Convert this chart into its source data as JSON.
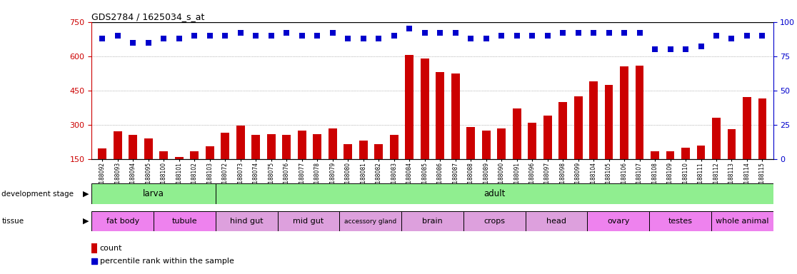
{
  "title": "GDS2784 / 1625034_s_at",
  "samples": [
    "GSM188092",
    "GSM188093",
    "GSM188094",
    "GSM188095",
    "GSM188100",
    "GSM188101",
    "GSM188102",
    "GSM188103",
    "GSM188072",
    "GSM188073",
    "GSM188074",
    "GSM188075",
    "GSM188076",
    "GSM188077",
    "GSM188078",
    "GSM188079",
    "GSM188080",
    "GSM188081",
    "GSM188082",
    "GSM188083",
    "GSM188084",
    "GSM188085",
    "GSM188086",
    "GSM188087",
    "GSM188088",
    "GSM188089",
    "GSM188090",
    "GSM188091",
    "GSM188096",
    "GSM188097",
    "GSM188098",
    "GSM188099",
    "GSM188104",
    "GSM188105",
    "GSM188106",
    "GSM188107",
    "GSM188108",
    "GSM188109",
    "GSM188110",
    "GSM188111",
    "GSM188112",
    "GSM188113",
    "GSM188114",
    "GSM188115"
  ],
  "count_values": [
    195,
    270,
    255,
    240,
    185,
    160,
    185,
    205,
    265,
    295,
    255,
    260,
    255,
    275,
    260,
    285,
    215,
    230,
    215,
    255,
    605,
    590,
    530,
    525,
    290,
    275,
    285,
    370,
    310,
    340,
    400,
    425,
    490,
    475,
    555,
    560,
    185,
    185,
    200,
    210,
    330,
    280,
    420,
    415
  ],
  "percentile_values": [
    88,
    90,
    85,
    85,
    88,
    88,
    90,
    90,
    90,
    92,
    90,
    90,
    92,
    90,
    90,
    92,
    88,
    88,
    88,
    90,
    95,
    92,
    92,
    92,
    88,
    88,
    90,
    90,
    90,
    90,
    92,
    92,
    92,
    92,
    92,
    92,
    80,
    80,
    80,
    82,
    90,
    88,
    90,
    90
  ],
  "ylim_left": [
    150,
    750
  ],
  "ylim_right": [
    0,
    100
  ],
  "yticks_left": [
    150,
    300,
    450,
    600,
    750
  ],
  "yticks_right": [
    0,
    25,
    50,
    75,
    100
  ],
  "grid_values": [
    300,
    450,
    600
  ],
  "dev_stage_groups": [
    {
      "label": "larva",
      "start": 0,
      "end": 8,
      "color": "#90EE90"
    },
    {
      "label": "adult",
      "start": 8,
      "end": 44,
      "color": "#90EE90"
    }
  ],
  "tissue_groups": [
    {
      "label": "fat body",
      "start": 0,
      "end": 4,
      "color": "#EE82EE"
    },
    {
      "label": "tubule",
      "start": 4,
      "end": 8,
      "color": "#EE82EE"
    },
    {
      "label": "hind gut",
      "start": 8,
      "end": 12,
      "color": "#DDA0DD"
    },
    {
      "label": "mid gut",
      "start": 12,
      "end": 16,
      "color": "#DDA0DD"
    },
    {
      "label": "accessory gland",
      "start": 16,
      "end": 20,
      "color": "#DDA0DD"
    },
    {
      "label": "brain",
      "start": 20,
      "end": 24,
      "color": "#DDA0DD"
    },
    {
      "label": "crops",
      "start": 24,
      "end": 28,
      "color": "#DDA0DD"
    },
    {
      "label": "head",
      "start": 28,
      "end": 32,
      "color": "#DDA0DD"
    },
    {
      "label": "ovary",
      "start": 32,
      "end": 36,
      "color": "#EE82EE"
    },
    {
      "label": "testes",
      "start": 36,
      "end": 40,
      "color": "#EE82EE"
    },
    {
      "label": "whole animal",
      "start": 40,
      "end": 44,
      "color": "#EE82EE"
    }
  ],
  "bar_color": "#CC0000",
  "dot_color": "#0000CC",
  "left_axis_color": "#CC0000",
  "right_axis_color": "#0000CC"
}
